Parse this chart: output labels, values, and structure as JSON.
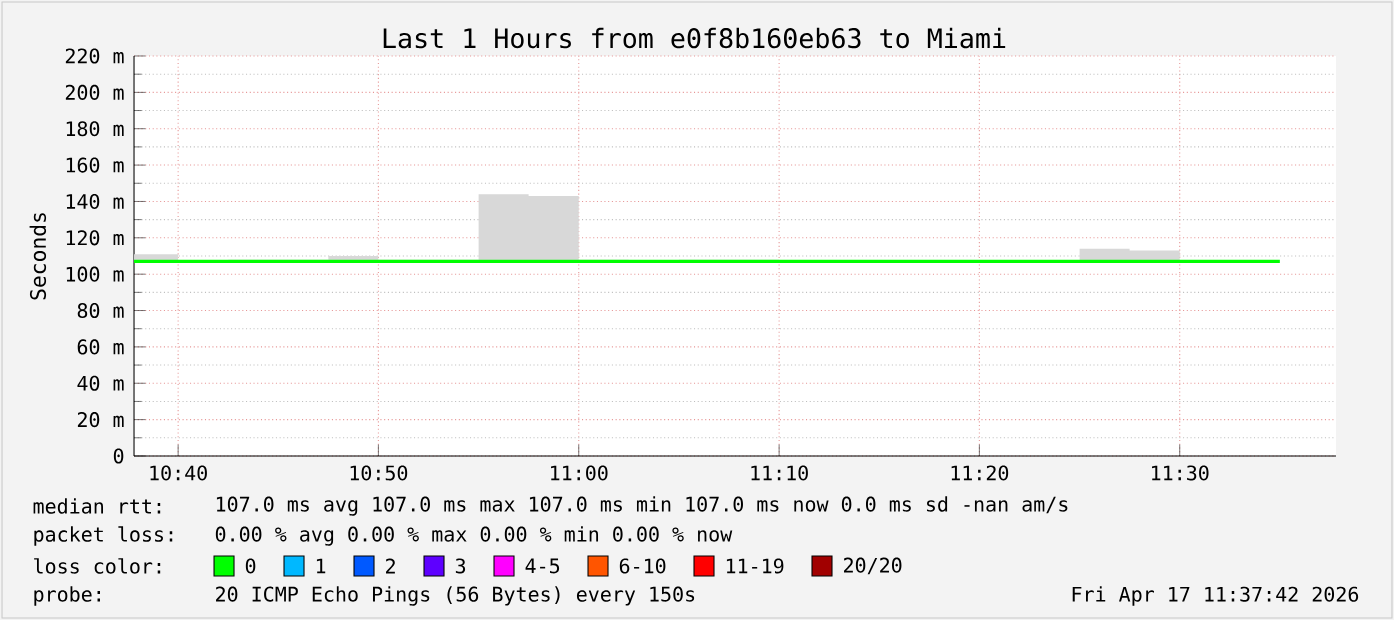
{
  "chart_data": {
    "type": "line",
    "title": "Last 1 Hours from e0f8b160eb63 to Miami",
    "ylabel": "Seconds",
    "legend_title": "loss color:",
    "legend": "bottom",
    "grid": true,
    "xlim": [
      10.63,
      11.63
    ],
    "ylim": [
      0,
      220
    ],
    "xticks": [
      {
        "value": 10.6667,
        "label": "10:40"
      },
      {
        "value": 10.8333,
        "label": "10:50"
      },
      {
        "value": 11,
        "label": "11:00"
      },
      {
        "value": 11.1667,
        "label": "11:10"
      },
      {
        "value": 11.3333,
        "label": "11:20"
      },
      {
        "value": 11.5,
        "label": "11:30"
      }
    ],
    "yticks": [
      0,
      {
        "value": 20,
        "label": "20 m"
      },
      {
        "value": 40,
        "label": "40 m"
      },
      {
        "value": 60,
        "label": "60 m"
      },
      {
        "value": 80,
        "label": "80 m"
      },
      {
        "value": 100,
        "label": "100 m"
      },
      {
        "value": 120,
        "label": "120 m"
      },
      {
        "value": 140,
        "label": "140 m"
      },
      {
        "value": 160,
        "label": "160 m"
      },
      {
        "value": 180,
        "label": "180 m"
      },
      {
        "value": 200,
        "label": "200 m"
      },
      {
        "value": 220,
        "label": "220 m"
      }
    ],
    "series": [
      {
        "name": "0",
        "color": "#00ff00",
        "x": [
          10.63,
          10.6667,
          10.6667,
          10.7083,
          10.7083,
          10.75,
          10.75,
          10.7917,
          10.7917,
          10.8333,
          10.8333,
          10.875,
          10.875,
          10.9167,
          10.9167,
          10.9583,
          10.9583,
          11,
          11,
          11.0417,
          11.0417,
          11.0833,
          11.0833,
          11.125,
          11.125,
          11.1667,
          11.1667,
          11.2083,
          11.2083,
          11.25,
          11.25,
          11.2917,
          11.2917,
          11.3333,
          11.3333,
          11.375,
          11.375,
          11.4167,
          11.4167,
          11.4583,
          11.4583,
          11.5,
          11.5,
          11.5417,
          11.5417,
          11.5833
        ],
        "values": [
          107,
          107,
          107,
          107,
          107,
          107,
          107,
          107,
          107,
          107,
          107,
          107,
          107,
          107,
          107,
          107,
          107,
          107,
          107,
          107,
          107,
          107,
          107,
          107,
          107,
          107,
          107,
          107,
          107,
          107,
          107,
          107,
          107,
          107,
          107,
          107,
          107,
          107,
          107,
          107,
          107,
          107,
          107,
          107,
          107,
          107
        ],
        "upper": [
          111,
          111,
          null,
          null,
          108,
          108,
          108,
          108,
          110,
          110,
          108,
          108,
          108,
          108,
          144,
          144,
          143,
          143,
          108,
          108,
          null,
          null,
          108,
          108,
          108,
          108,
          null,
          null,
          null,
          null,
          null,
          null,
          null,
          null,
          null,
          null,
          null,
          null,
          114,
          114,
          113,
          113,
          null,
          null,
          null,
          null
        ],
        "lower": [
          107,
          107,
          null,
          null,
          107,
          107,
          107,
          107,
          107,
          107,
          107,
          107,
          107,
          107,
          107,
          107,
          107,
          107,
          107,
          107,
          null,
          null,
          107,
          107,
          107,
          107,
          null,
          null,
          null,
          null,
          null,
          null,
          null,
          null,
          null,
          null,
          null,
          null,
          107,
          107,
          107,
          107,
          null,
          null,
          null,
          null
        ]
      },
      {
        "name": "1",
        "color": "#00b8ff"
      },
      {
        "name": "2",
        "color": "#0059ff"
      },
      {
        "name": "3",
        "color": "#5e00ff"
      },
      {
        "name": "4-5",
        "color": "#ff00ff"
      },
      {
        "name": "6-10",
        "color": "#ff5500"
      },
      {
        "name": "11-19",
        "color": "#ff0000"
      },
      {
        "name": "20/20",
        "color": "#a10000"
      }
    ],
    "annotations": [
      "median rtt:",
      "107.0 ms avg  107.0 ms max  107.0 ms min  107.0 ms now  0.0 ms sd  -nan   am/s",
      "packet loss:",
      "0.00 % avg  0.00 % max  0.00 % min  0.00 % now",
      "probe:",
      "20 ICMP Echo Pings (56 Bytes) every 150s",
      "Fri Apr 17 11:37:42 2026"
    ]
  }
}
